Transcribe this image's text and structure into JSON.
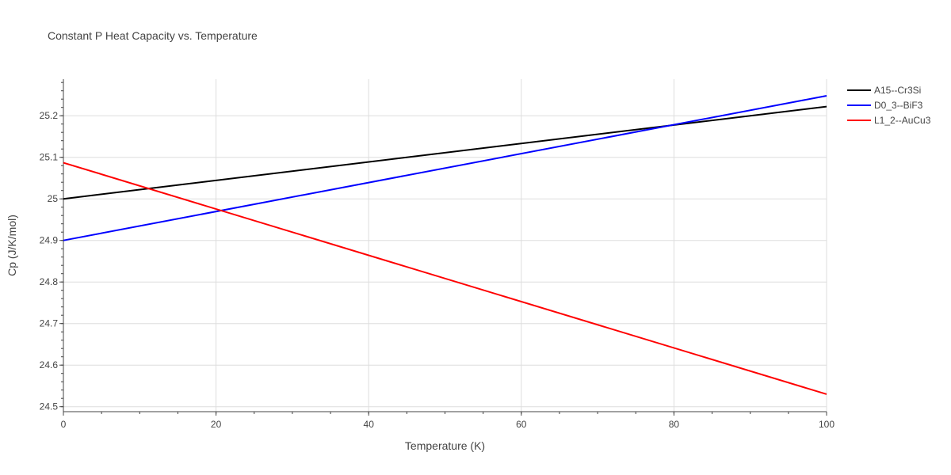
{
  "chart_data": {
    "type": "line",
    "title": "Constant P Heat Capacity vs. Temperature",
    "xlabel": "Temperature (K)",
    "ylabel": "Cp (J/K/mol)",
    "xlim": [
      0,
      100
    ],
    "ylim": [
      24.488,
      25.288
    ],
    "x_ticks": [
      0,
      20,
      40,
      60,
      80,
      100
    ],
    "y_ticks": [
      24.5,
      24.6,
      24.7,
      24.8,
      24.9,
      25,
      25.1,
      25.2
    ],
    "y_tick_labels": [
      "24.5",
      "24.6",
      "24.7",
      "24.8",
      "24.9",
      "25",
      "25.1",
      "25.2"
    ],
    "grid": true,
    "legend_position": "top-right",
    "series": [
      {
        "name": "A15--Cr3Si",
        "color": "#000000",
        "x": [
          0,
          100
        ],
        "y": [
          25.0,
          25.222
        ]
      },
      {
        "name": "D0_3--BiF3",
        "color": "#0000ff",
        "x": [
          0,
          100
        ],
        "y": [
          24.9,
          25.248
        ]
      },
      {
        "name": "L1_2--AuCu3",
        "color": "#ff0000",
        "x": [
          0,
          100
        ],
        "y": [
          25.087,
          24.53
        ]
      }
    ]
  }
}
